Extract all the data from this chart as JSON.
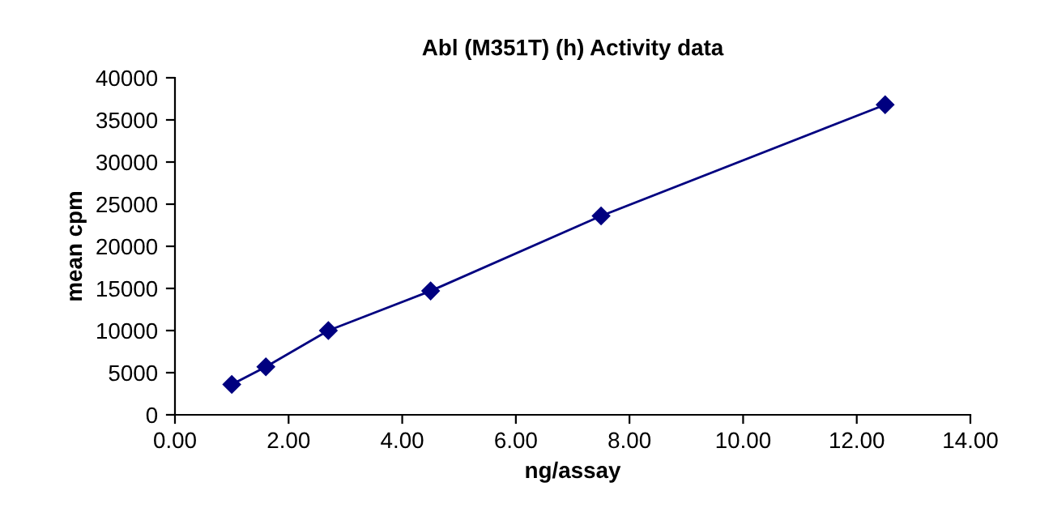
{
  "chart_data": {
    "type": "line",
    "title": "Abl (M351T) (h) Activity data",
    "xlabel": "ng/assay",
    "ylabel": "mean cpm",
    "x": [
      1.0,
      1.6,
      2.7,
      4.5,
      7.5,
      12.5
    ],
    "series": [
      {
        "color": "#000080",
        "values": [
          3600,
          5700,
          10000,
          14700,
          23600,
          36800
        ]
      }
    ],
    "xlim": [
      0,
      14
    ],
    "xticks": [
      {
        "value": 0,
        "label": "0.00"
      },
      {
        "value": 2,
        "label": "2.00"
      },
      {
        "value": 4,
        "label": "4.00"
      },
      {
        "value": 6,
        "label": "6.00"
      },
      {
        "value": 8,
        "label": "8.00"
      },
      {
        "value": 10,
        "label": "10.00"
      },
      {
        "value": 12,
        "label": "12.00"
      },
      {
        "value": 14,
        "label": "14.00"
      }
    ],
    "ylim": [
      0,
      40000
    ],
    "yticks": [
      0,
      5000,
      10000,
      15000,
      20000,
      25000,
      30000,
      35000,
      40000
    ],
    "grid": false,
    "marker": "diamond",
    "line_style": "solid"
  }
}
